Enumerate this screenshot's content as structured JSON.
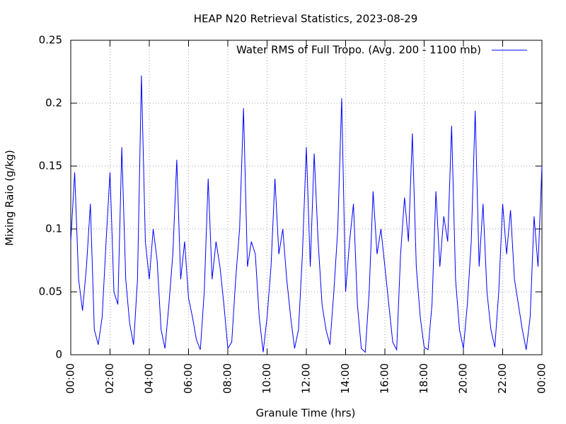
{
  "chart_data": {
    "type": "line",
    "title": "HEAP N20 Retrieval Statistics, 2023-08-29",
    "x_label": "Granule Time (hrs)",
    "y_label": "Mixing Raio (g/kg)",
    "xlim": [
      0,
      24
    ],
    "xticks": [
      {
        "value": 0,
        "label": "00:00"
      },
      {
        "value": 2,
        "label": "02:00"
      },
      {
        "value": 4,
        "label": "04:00"
      },
      {
        "value": 6,
        "label": "06:00"
      },
      {
        "value": 8,
        "label": "08:00"
      },
      {
        "value": 10,
        "label": "10:00"
      },
      {
        "value": 12,
        "label": "12:00"
      },
      {
        "value": 14,
        "label": "14:00"
      },
      {
        "value": 16,
        "label": "16:00"
      },
      {
        "value": 18,
        "label": "18:00"
      },
      {
        "value": 20,
        "label": "20:00"
      },
      {
        "value": 22,
        "label": "22:00"
      },
      {
        "value": 24,
        "label": "00:00"
      }
    ],
    "ylim": [
      0,
      0.25
    ],
    "yticks": [
      0,
      0.05,
      0.1,
      0.15,
      0.2,
      0.25
    ],
    "grid": true,
    "legend": "upper right",
    "x": [
      0,
      0.2,
      0.4,
      0.6,
      0.8,
      1,
      1.2,
      1.4,
      1.6,
      1.8,
      2,
      2.2,
      2.4,
      2.6,
      2.8,
      3,
      3.2,
      3.4,
      3.6,
      3.8,
      4,
      4.2,
      4.4,
      4.6,
      4.8,
      5,
      5.2,
      5.4,
      5.6,
      5.8,
      6,
      6.2,
      6.4,
      6.6,
      6.8,
      7,
      7.2,
      7.4,
      7.6,
      7.8,
      8,
      8.2,
      8.4,
      8.6,
      8.8,
      9,
      9.2,
      9.4,
      9.6,
      9.8,
      10,
      10.2,
      10.4,
      10.6,
      10.8,
      11,
      11.2,
      11.4,
      11.6,
      11.8,
      12,
      12.2,
      12.4,
      12.6,
      12.8,
      13,
      13.2,
      13.4,
      13.6,
      13.8,
      14,
      14.2,
      14.4,
      14.6,
      14.8,
      15,
      15.2,
      15.4,
      15.6,
      15.8,
      16,
      16.2,
      16.4,
      16.6,
      16.8,
      17,
      17.2,
      17.4,
      17.6,
      17.8,
      18,
      18.2,
      18.4,
      18.6,
      18.8,
      19,
      19.2,
      19.4,
      19.6,
      19.8,
      20,
      20.2,
      20.4,
      20.6,
      20.8,
      21,
      21.2,
      21.4,
      21.6,
      21.8,
      22,
      22.2,
      22.4,
      22.6,
      22.8,
      23,
      23.2,
      23.4,
      23.6,
      23.8,
      24
    ],
    "series": [
      {
        "name": "Water RMS of Full Tropo. (Avg. 200 - 1100 mb)",
        "color": "#0000ff",
        "values": [
          0.09,
          0.145,
          0.06,
          0.035,
          0.07,
          0.12,
          0.02,
          0.008,
          0.03,
          0.09,
          0.145,
          0.05,
          0.04,
          0.165,
          0.06,
          0.025,
          0.008,
          0.06,
          0.222,
          0.09,
          0.06,
          0.1,
          0.075,
          0.02,
          0.005,
          0.04,
          0.08,
          0.155,
          0.06,
          0.09,
          0.045,
          0.03,
          0.012,
          0.004,
          0.05,
          0.14,
          0.06,
          0.09,
          0.07,
          0.04,
          0.005,
          0.01,
          0.06,
          0.1,
          0.196,
          0.07,
          0.09,
          0.08,
          0.03,
          0.002,
          0.03,
          0.07,
          0.14,
          0.08,
          0.1,
          0.06,
          0.03,
          0.005,
          0.02,
          0.08,
          0.165,
          0.07,
          0.16,
          0.09,
          0.04,
          0.02,
          0.008,
          0.05,
          0.1,
          0.204,
          0.05,
          0.09,
          0.12,
          0.04,
          0.005,
          0.002,
          0.05,
          0.13,
          0.08,
          0.1,
          0.07,
          0.04,
          0.01,
          0.004,
          0.08,
          0.125,
          0.09,
          0.176,
          0.07,
          0.03,
          0.006,
          0.004,
          0.04,
          0.13,
          0.07,
          0.11,
          0.09,
          0.182,
          0.06,
          0.02,
          0.005,
          0.04,
          0.09,
          0.194,
          0.07,
          0.12,
          0.05,
          0.02,
          0.006,
          0.05,
          0.12,
          0.08,
          0.115,
          0.06,
          0.04,
          0.02,
          0.004,
          0.03,
          0.11,
          0.07,
          0.15
        ]
      }
    ]
  }
}
